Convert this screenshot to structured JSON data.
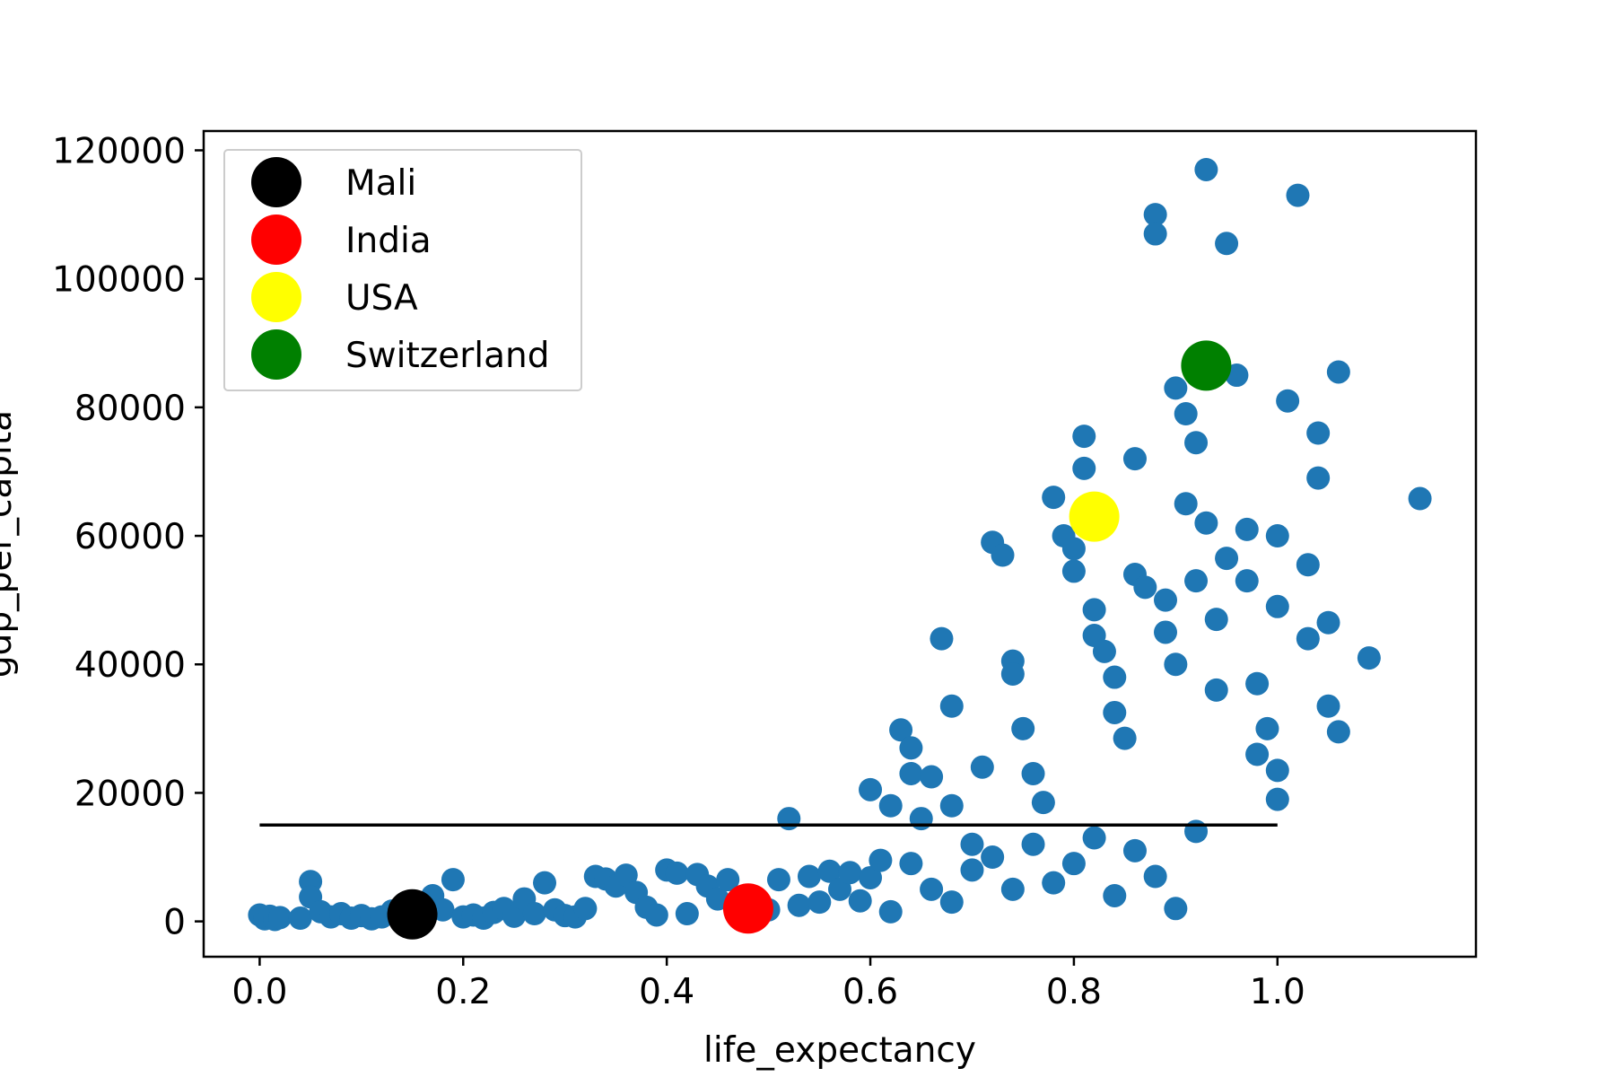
{
  "chart_data": {
    "type": "scatter",
    "title": "",
    "xlabel": "life_expectancy",
    "ylabel": "gdp_per_capita",
    "xlim": [
      -0.055,
      1.195
    ],
    "ylim": [
      -5500,
      123000
    ],
    "x_ticks": [
      0.0,
      0.2,
      0.4,
      0.6,
      0.8,
      1.0
    ],
    "x_tick_labels": [
      "0.0",
      "0.2",
      "0.4",
      "0.6",
      "0.8",
      "1.0"
    ],
    "y_ticks": [
      0,
      20000,
      40000,
      60000,
      80000,
      100000,
      120000
    ],
    "y_tick_labels": [
      "0",
      "20000",
      "40000",
      "60000",
      "80000",
      "100000",
      "120000"
    ],
    "grid": false,
    "legend_placement": "upper-left",
    "threshold_line": {
      "y": 15000,
      "x_start": 0.0,
      "x_end": 1.0,
      "color": "#000000"
    },
    "series": [
      {
        "color": "#1f77b4",
        "points": [
          [
            0.0,
            1000
          ],
          [
            0.005,
            400
          ],
          [
            0.01,
            800
          ],
          [
            0.015,
            300
          ],
          [
            0.02,
            600
          ],
          [
            0.04,
            500
          ],
          [
            0.05,
            6200
          ],
          [
            0.05,
            3800
          ],
          [
            0.06,
            1500
          ],
          [
            0.07,
            700
          ],
          [
            0.08,
            1200
          ],
          [
            0.09,
            500
          ],
          [
            0.1,
            900
          ],
          [
            0.11,
            400
          ],
          [
            0.12,
            700
          ],
          [
            0.13,
            1600
          ],
          [
            0.14,
            1200
          ],
          [
            0.16,
            2500
          ],
          [
            0.17,
            4000
          ],
          [
            0.18,
            1800
          ],
          [
            0.19,
            6500
          ],
          [
            0.2,
            700
          ],
          [
            0.21,
            1000
          ],
          [
            0.22,
            500
          ],
          [
            0.23,
            1400
          ],
          [
            0.24,
            2000
          ],
          [
            0.25,
            800
          ],
          [
            0.26,
            3500
          ],
          [
            0.27,
            1200
          ],
          [
            0.28,
            6000
          ],
          [
            0.29,
            1800
          ],
          [
            0.3,
            900
          ],
          [
            0.31,
            700
          ],
          [
            0.32,
            2000
          ],
          [
            0.33,
            7000
          ],
          [
            0.34,
            6600
          ],
          [
            0.35,
            5500
          ],
          [
            0.36,
            7200
          ],
          [
            0.37,
            4500
          ],
          [
            0.38,
            2200
          ],
          [
            0.39,
            1000
          ],
          [
            0.4,
            8000
          ],
          [
            0.41,
            7500
          ],
          [
            0.42,
            1200
          ],
          [
            0.43,
            7300
          ],
          [
            0.44,
            5500
          ],
          [
            0.45,
            3500
          ],
          [
            0.46,
            6500
          ],
          [
            0.47,
            2800
          ],
          [
            0.48,
            1500
          ],
          [
            0.5,
            1800
          ],
          [
            0.51,
            6500
          ],
          [
            0.52,
            16000
          ],
          [
            0.53,
            2500
          ],
          [
            0.54,
            7000
          ],
          [
            0.55,
            3000
          ],
          [
            0.56,
            7800
          ],
          [
            0.57,
            5000
          ],
          [
            0.58,
            7600
          ],
          [
            0.59,
            3200
          ],
          [
            0.6,
            20500
          ],
          [
            0.6,
            6800
          ],
          [
            0.61,
            9500
          ],
          [
            0.62,
            18000
          ],
          [
            0.62,
            1500
          ],
          [
            0.63,
            29800
          ],
          [
            0.64,
            27000
          ],
          [
            0.64,
            23000
          ],
          [
            0.65,
            16000
          ],
          [
            0.66,
            22500
          ],
          [
            0.67,
            44000
          ],
          [
            0.68,
            33500
          ],
          [
            0.68,
            18000
          ],
          [
            0.7,
            12000
          ],
          [
            0.71,
            24000
          ],
          [
            0.72,
            59000
          ],
          [
            0.73,
            57000
          ],
          [
            0.74,
            40500
          ],
          [
            0.74,
            38500
          ],
          [
            0.75,
            30000
          ],
          [
            0.76,
            23000
          ],
          [
            0.77,
            18500
          ],
          [
            0.78,
            66000
          ],
          [
            0.79,
            60000
          ],
          [
            0.8,
            58000
          ],
          [
            0.8,
            54500
          ],
          [
            0.81,
            70500
          ],
          [
            0.81,
            75500
          ],
          [
            0.82,
            48500
          ],
          [
            0.82,
            44500
          ],
          [
            0.83,
            42000
          ],
          [
            0.84,
            38000
          ],
          [
            0.84,
            32500
          ],
          [
            0.85,
            28500
          ],
          [
            0.86,
            72000
          ],
          [
            0.86,
            54000
          ],
          [
            0.87,
            52000
          ],
          [
            0.88,
            110000
          ],
          [
            0.88,
            107000
          ],
          [
            0.89,
            50000
          ],
          [
            0.89,
            45000
          ],
          [
            0.9,
            83000
          ],
          [
            0.9,
            40000
          ],
          [
            0.91,
            79000
          ],
          [
            0.91,
            65000
          ],
          [
            0.92,
            74500
          ],
          [
            0.92,
            53000
          ],
          [
            0.93,
            117000
          ],
          [
            0.93,
            62000
          ],
          [
            0.94,
            47000
          ],
          [
            0.94,
            36000
          ],
          [
            0.95,
            105500
          ],
          [
            0.95,
            56500
          ],
          [
            0.96,
            85000
          ],
          [
            0.97,
            61000
          ],
          [
            0.97,
            53000
          ],
          [
            0.98,
            37000
          ],
          [
            0.98,
            26000
          ],
          [
            0.99,
            30000
          ],
          [
            1.0,
            60000
          ],
          [
            1.0,
            49000
          ],
          [
            1.0,
            23500
          ],
          [
            1.0,
            19000
          ],
          [
            1.01,
            81000
          ],
          [
            1.02,
            113000
          ],
          [
            1.03,
            55500
          ],
          [
            1.03,
            44000
          ],
          [
            1.04,
            76000
          ],
          [
            1.04,
            69000
          ],
          [
            1.05,
            46500
          ],
          [
            1.05,
            33500
          ],
          [
            1.06,
            85500
          ],
          [
            1.06,
            29500
          ],
          [
            1.09,
            41000
          ],
          [
            1.14,
            65800
          ],
          [
            0.7,
            8000
          ],
          [
            0.72,
            10000
          ],
          [
            0.74,
            5000
          ],
          [
            0.76,
            12000
          ],
          [
            0.78,
            6000
          ],
          [
            0.8,
            9000
          ],
          [
            0.82,
            13000
          ],
          [
            0.84,
            4000
          ],
          [
            0.86,
            11000
          ],
          [
            0.88,
            7000
          ],
          [
            0.9,
            2000
          ],
          [
            0.92,
            14000
          ],
          [
            0.66,
            5000
          ],
          [
            0.68,
            3000
          ],
          [
            0.64,
            9000
          ]
        ]
      }
    ],
    "highlights": [
      {
        "name": "Mali",
        "color": "#000000",
        "x": 0.15,
        "y": 1100
      },
      {
        "name": "India",
        "color": "#ff0000",
        "x": 0.48,
        "y": 2000
      },
      {
        "name": "USA",
        "color": "#ffff00",
        "x": 0.82,
        "y": 63000
      },
      {
        "name": "Switzerland",
        "color": "#008000",
        "x": 0.93,
        "y": 86500
      }
    ]
  }
}
